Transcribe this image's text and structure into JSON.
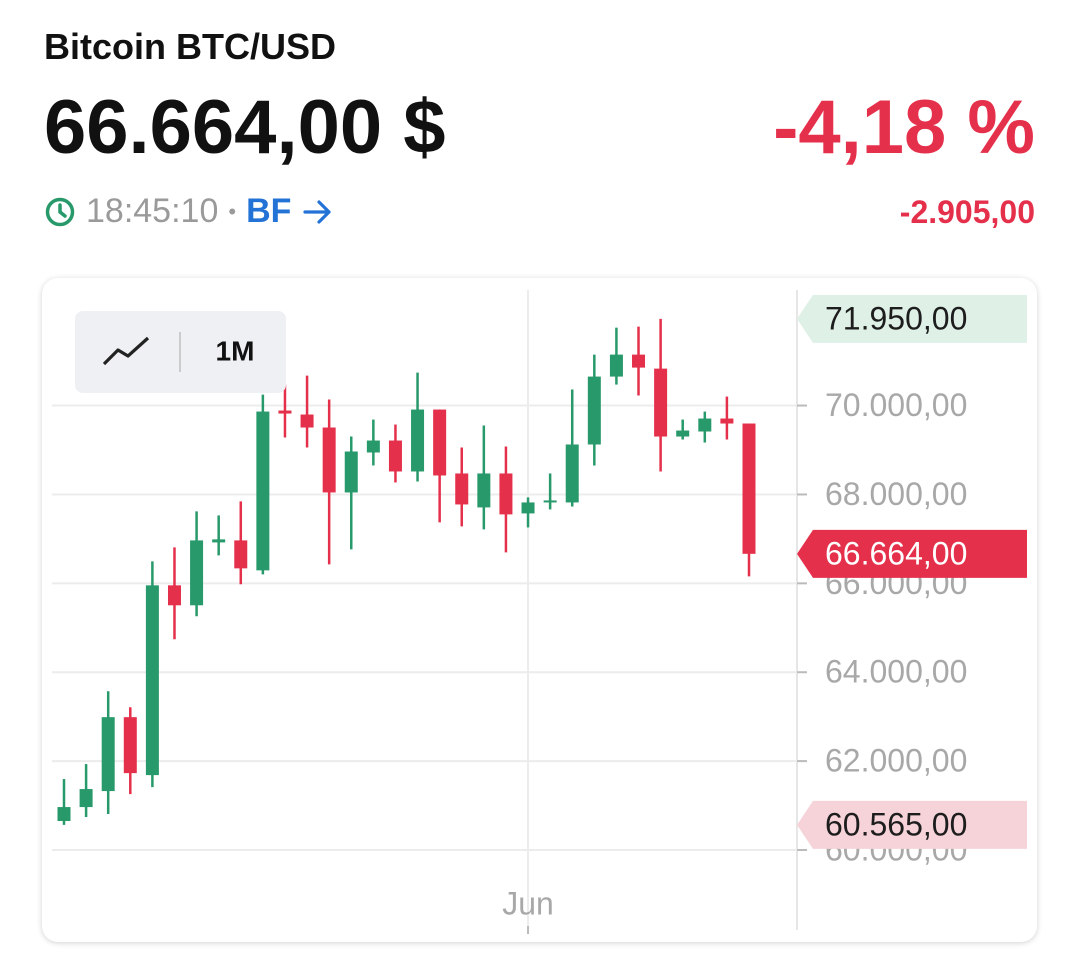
{
  "header": {
    "title": "Bitcoin BTC/USD",
    "price": "66.664,00 $",
    "change_percent": "-4,18 %",
    "time": "18:45:10",
    "source": "BF",
    "change_abs": "-2.905,00"
  },
  "controls": {
    "range": "1M"
  },
  "chart_data": {
    "type": "candlestick",
    "categories": [
      null,
      null,
      null,
      null,
      null,
      null,
      null,
      null,
      null,
      null,
      null,
      null,
      null,
      null,
      null,
      null,
      null,
      null,
      null,
      null,
      null,
      "Jun",
      null,
      null,
      null,
      null,
      null,
      null,
      null,
      null,
      null,
      null
    ],
    "open": [
      60652,
      60966,
      61326,
      62989,
      61685,
      65955,
      65506,
      66921,
      66966,
      66292,
      69888,
      69798,
      69506,
      68045,
      68944,
      69213,
      68517,
      69910,
      68472,
      67708,
      68472,
      67573,
      67820,
      67820,
      69124,
      70652,
      71146,
      70831,
      69303,
      69416,
      69708,
      69596
    ],
    "high": [
      61596,
      61933,
      63573,
      63213,
      66494,
      66809,
      67618,
      67528,
      67843,
      70247,
      70472,
      70674,
      70135,
      69303,
      69685,
      69573,
      70742,
      69910,
      69056,
      69551,
      69079,
      67933,
      68472,
      70360,
      71146,
      71753,
      71775,
      71950,
      69685,
      69865,
      70202,
      69596
    ],
    "low": [
      60565,
      60742,
      60809,
      61258,
      61416,
      64742,
      65258,
      66629,
      65978,
      66202,
      69281,
      69056,
      66427,
      66764,
      68652,
      68270,
      68292,
      67371,
      67281,
      67213,
      66697,
      67258,
      67663,
      67730,
      68652,
      70472,
      70225,
      68517,
      69236,
      69169,
      69236,
      66157
    ],
    "close": [
      60966,
      61371,
      62989,
      61730,
      65955,
      65506,
      66966,
      66989,
      66337,
      69865,
      69820,
      69506,
      68045,
      68966,
      69213,
      68517,
      69910,
      68427,
      67775,
      68472,
      67551,
      67820,
      67865,
      69124,
      70652,
      71146,
      70854,
      69303,
      69438,
      69708,
      69596,
      66664
    ],
    "up_color": "#27996a",
    "down_color": "#e5304b",
    "ylim": [
      58200,
      72600
    ],
    "yticks": [
      {
        "value": 60000,
        "label": "60.000,00"
      },
      {
        "value": 62000,
        "label": "62.000,00"
      },
      {
        "value": 64000,
        "label": "64.000,00"
      },
      {
        "value": 66000,
        "label": "66.000,00"
      },
      {
        "value": 68000,
        "label": "68.000,00"
      },
      {
        "value": 70000,
        "label": "70.000,00"
      }
    ],
    "grid": true,
    "price_tags": [
      {
        "value": 71950,
        "label": "71.950,00",
        "color": "#dff1e7",
        "text_color": "#1d1d1d"
      },
      {
        "value": 66664,
        "label": "66.664,00",
        "color": "#e5304b",
        "text_color": "#ffffff"
      },
      {
        "value": 60565,
        "label": "60.565,00",
        "color": "#f5d3d9",
        "text_color": "#1d1d1d"
      }
    ]
  }
}
